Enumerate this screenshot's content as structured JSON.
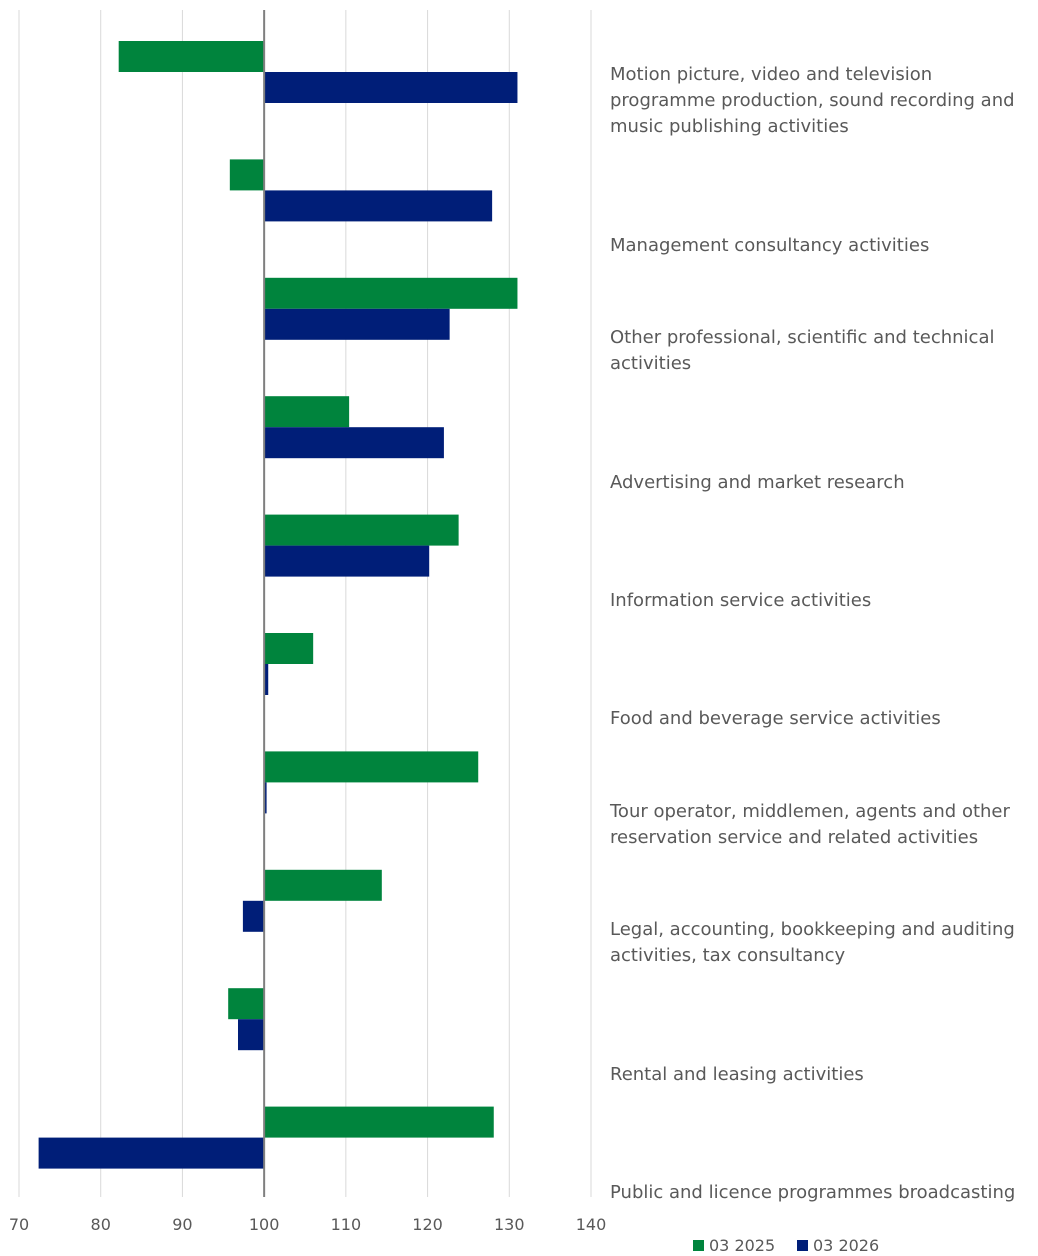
{
  "chart_data": {
    "type": "bar",
    "orientation": "horizontal",
    "baseline": 100,
    "categories": [
      "Motion picture, video and television programme production, sound recording and music publishing activities",
      "Management consultancy activities",
      "Other professional, scientific and technical activities",
      "Advertising and market research",
      "Information service activities",
      "Food and beverage service activities",
      "Tour operator, middlemen, agents and other reservation service and related activities",
      "Legal, accounting, bookkeeping and auditing activities, tax consultancy",
      "Rental and leasing activities",
      "Public and licence programmes broadcasting"
    ],
    "series": [
      {
        "name": "03 2025",
        "color": "#00843d",
        "values": [
          82.2,
          95.8,
          131.0,
          110.4,
          123.8,
          106.0,
          126.2,
          114.4,
          95.6,
          128.1
        ]
      },
      {
        "name": "03 2026",
        "color": "#001e78",
        "values": [
          131.0,
          127.9,
          122.7,
          122.0,
          120.2,
          100.5,
          100.3,
          97.4,
          96.8,
          72.4
        ]
      }
    ],
    "xlim": [
      70,
      140
    ],
    "xticks": [
      70,
      80,
      90,
      100,
      110,
      120,
      130,
      140
    ],
    "grid": true,
    "legend": "bottom-right",
    "title": "",
    "xlabel": "",
    "ylabel": ""
  }
}
